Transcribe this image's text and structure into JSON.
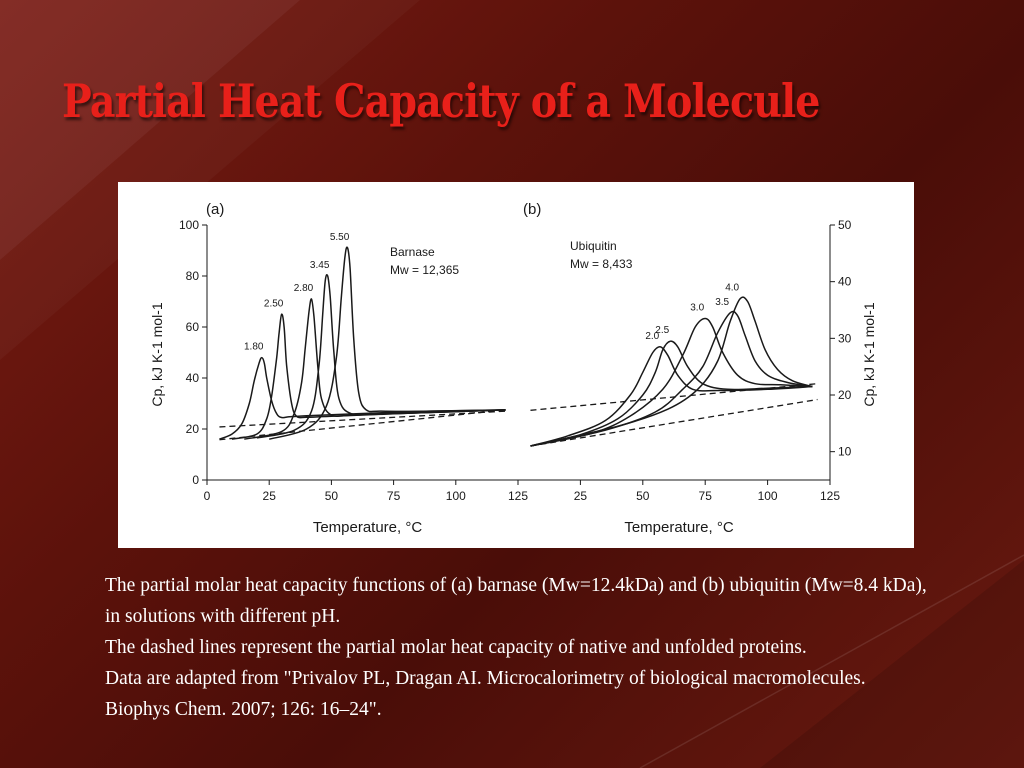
{
  "slide": {
    "title": "Partial Heat Capacity of a Molecule",
    "caption": [
      "The partial molar heat capacity functions of (a) barnase (Mw=12.4kDa) and (b) ubiquitin (Mw=8.4 kDa), in solutions with different pH.",
      "The dashed lines represent the partial molar heat capacity of native and unfolded proteins.",
      "Data are adapted from \"Privalov PL, Dragan AI. Microcalorimetry of biological macromolecules. Biophys Chem. 2007; 126: 16–24\"."
    ],
    "colors": {
      "title": "#e8201a",
      "background": "#5c120b",
      "caption": "#ffffff",
      "curve": "#1a1a1a"
    }
  },
  "chart_data": [
    {
      "type": "line",
      "panel_label": "(a)",
      "annotation_name": "Barnase",
      "annotation_mw": "Mw = 12,365",
      "xlabel": "Temperature, °C",
      "ylabel": "Cp, kJ K-1 mol-1",
      "xlim": [
        0,
        125
      ],
      "ylim": [
        0,
        100
      ],
      "x_ticks": [
        0,
        25,
        50,
        75,
        100,
        125
      ],
      "y_ticks": [
        0,
        20,
        40,
        60,
        80,
        100
      ],
      "y_axis_side": "left",
      "grid": false,
      "series": [
        {
          "name": "1.80",
          "x": [
            5,
            10,
            14,
            17,
            19,
            21,
            22,
            23,
            24,
            26,
            28,
            30,
            33,
            40,
            60,
            90,
            120
          ],
          "y": [
            16,
            18,
            22,
            30,
            39,
            46,
            48,
            46,
            40,
            31,
            26,
            24.5,
            24.8,
            25.2,
            26,
            27,
            27.5
          ]
        },
        {
          "name": "2.50",
          "x": [
            10,
            20,
            24,
            26,
            28,
            29,
            30,
            31,
            32,
            34,
            36,
            40,
            50,
            90,
            120
          ],
          "y": [
            16,
            18,
            24,
            33,
            48,
            58,
            65,
            60,
            45,
            30,
            25,
            24.6,
            25,
            26.5,
            27.5
          ]
        },
        {
          "name": "2.80",
          "x": [
            15,
            30,
            35,
            38,
            39.5,
            41,
            42,
            43,
            44.5,
            46,
            50,
            60,
            90,
            120
          ],
          "y": [
            16,
            19,
            26,
            38,
            52,
            66,
            71,
            64,
            45,
            32,
            25.5,
            25.5,
            26.5,
            27.5
          ]
        },
        {
          "name": "3.45",
          "x": [
            20,
            35,
            42,
            45,
            46.5,
            47.5,
            48.5,
            49.5,
            51,
            53,
            58,
            70,
            100,
            120
          ],
          "y": [
            16.5,
            19.5,
            27,
            45,
            65,
            78,
            80,
            72,
            50,
            32,
            26,
            26,
            26.8,
            27.5
          ]
        },
        {
          "name": "5.50",
          "x": [
            25,
            40,
            48,
            52,
            54,
            55.5,
            56.5,
            57.5,
            59,
            61,
            64,
            70,
            90,
            120
          ],
          "y": [
            16,
            20,
            29,
            48,
            72,
            88,
            91,
            83,
            55,
            34,
            27.5,
            27,
            27,
            27.5
          ]
        }
      ],
      "baselines": [
        {
          "x": [
            5,
            120
          ],
          "y": [
            20.8,
            27
          ]
        },
        {
          "x": [
            5,
            120
          ],
          "y": [
            15.8,
            27.5
          ]
        }
      ]
    },
    {
      "type": "line",
      "panel_label": "(b)",
      "annotation_name": "Ubiquitin",
      "annotation_mw": "Mw = 8,433",
      "xlabel": "Temperature, °C",
      "ylabel": "Cp, kJ K-1 mol-1",
      "xlim": [
        0,
        125
      ],
      "ylim": [
        5,
        50
      ],
      "x_ticks": [
        25,
        50,
        75,
        100,
        125
      ],
      "y_ticks": [
        10,
        20,
        30,
        40,
        50
      ],
      "y_axis_side": "right",
      "grid": false,
      "series": [
        {
          "name": "2.0",
          "x": [
            5,
            20,
            35,
            45,
            50,
            54,
            57,
            60,
            64,
            70,
            80,
            100,
            118
          ],
          "y": [
            11,
            12.8,
            15.5,
            20,
            24,
            27.5,
            28.5,
            27,
            23.5,
            21,
            20.8,
            21,
            21.5
          ]
        },
        {
          "name": "2.5",
          "x": [
            5,
            25,
            40,
            50,
            55,
            58,
            61,
            64,
            68,
            74,
            84,
            100,
            118
          ],
          "y": [
            11,
            13,
            15.8,
            20,
            24,
            28,
            29.5,
            28.5,
            25,
            22,
            21,
            21.2,
            21.5
          ]
        },
        {
          "name": "3.0",
          "x": [
            5,
            30,
            45,
            58,
            66,
            71,
            75,
            78,
            82,
            88,
            95,
            105,
            118
          ],
          "y": [
            11,
            13.3,
            16.3,
            21,
            27,
            32,
            33.5,
            32,
            27.5,
            23.5,
            22,
            21.8,
            21.5
          ]
        },
        {
          "name": "3.5",
          "x": [
            5,
            35,
            55,
            66,
            74,
            80,
            85,
            88,
            91,
            95,
            100,
            108,
            118
          ],
          "y": [
            11,
            13.8,
            17,
            21,
            25,
            31,
            34.5,
            34,
            30.5,
            26,
            23.5,
            22.2,
            21.5
          ]
        },
        {
          "name": "4.0",
          "x": [
            5,
            40,
            60,
            72,
            80,
            85,
            89,
            92,
            95,
            99,
            104,
            110,
            118
          ],
          "y": [
            11,
            14.5,
            17.5,
            21,
            26,
            33,
            37,
            36.5,
            33,
            28,
            24.5,
            22.5,
            21.5
          ]
        }
      ],
      "baselines": [
        {
          "x": [
            5,
            120
          ],
          "y": [
            17.3,
            22
          ]
        },
        {
          "x": [
            5,
            120
          ],
          "y": [
            11,
            19.2
          ]
        }
      ]
    }
  ]
}
